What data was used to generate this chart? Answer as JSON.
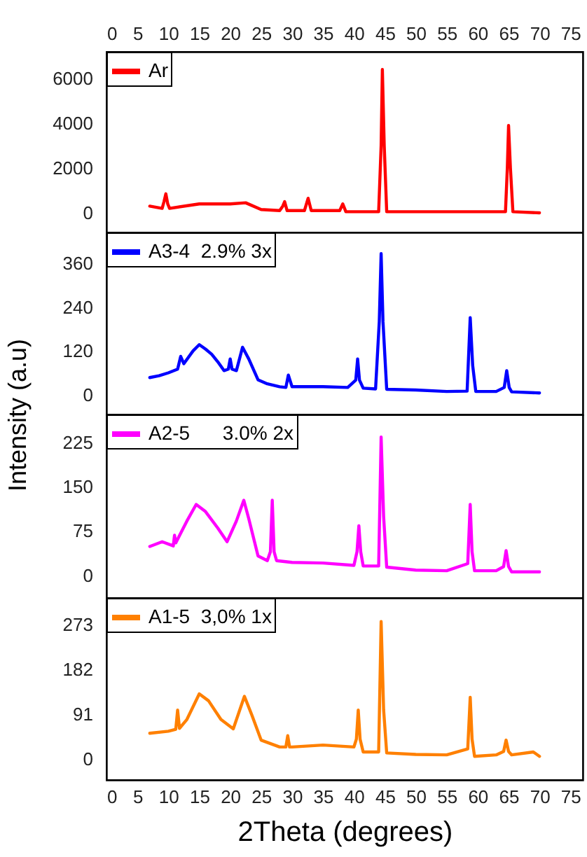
{
  "chart_data": [
    {
      "type": "line",
      "xlim": [
        0,
        77
      ],
      "xticks": [
        0,
        5,
        10,
        15,
        20,
        25,
        30,
        35,
        40,
        45,
        50,
        55,
        60,
        65,
        70,
        75
      ],
      "ylim": [
        -875,
        7190
      ],
      "yticks": [
        0,
        2000,
        4000,
        6000
      ],
      "legend": "top left",
      "grid": false,
      "line_style": "solid",
      "marker": "none",
      "series": [
        {
          "name": "Ar",
          "color": "#ff0000",
          "x": [
            7,
            9,
            9.3,
            9.6,
            9.9,
            10.2,
            15,
            20,
            22.5,
            25,
            28,
            28.5,
            28.8,
            29.2,
            32,
            32.6,
            33.1,
            37.7,
            38.2,
            38.7,
            44,
            44.4,
            44.6,
            44.9,
            45.3,
            55,
            64.5,
            64.8,
            65,
            65.3,
            65.7,
            70
          ],
          "values": [
            300,
            200,
            500,
            850,
            400,
            200,
            400,
            400,
            450,
            150,
            100,
            300,
            500,
            100,
            100,
            650,
            100,
            100,
            400,
            50,
            50,
            3000,
            6400,
            3000,
            50,
            50,
            50,
            2000,
            3900,
            2000,
            50,
            0
          ]
        }
      ]
    },
    {
      "type": "line",
      "xlim": [
        0,
        77
      ],
      "ylim": [
        -54,
        444
      ],
      "yticks": [
        0,
        120,
        240,
        360
      ],
      "tick_labels": "y",
      "legend": "top left",
      "grid": false,
      "line_style": "solid",
      "marker": "none",
      "ylabel": "Intensity (a.u)",
      "series": [
        {
          "name": "A3-4  2.9% 3x",
          "color": "#0000ff",
          "x": [
            7,
            8.5,
            10,
            11.5,
            12,
            12.5,
            14,
            15,
            16,
            17,
            18,
            19,
            19.7,
            20,
            20.3,
            21,
            22,
            23,
            24.5,
            26,
            28,
            29,
            29.4,
            30,
            35,
            39,
            40.3,
            40.6,
            40.9,
            41.5,
            43.5,
            44.1,
            44.4,
            44.7,
            45.3,
            50,
            55,
            58.3,
            58.8,
            59.2,
            59.7,
            63,
            64.3,
            64.7,
            65.1,
            65.5,
            70
          ],
          "values": [
            47,
            52,
            60,
            70,
            105,
            85,
            120,
            137,
            125,
            111,
            90,
            66,
            70,
            98,
            70,
            66,
            130,
            98,
            41,
            30,
            22,
            20,
            54,
            22,
            22,
            20,
            40,
            98,
            40,
            18,
            16,
            200,
            386,
            200,
            15,
            13,
            9,
            10,
            211,
            80,
            9,
            9,
            20,
            66,
            20,
            8,
            5
          ]
        }
      ]
    },
    {
      "type": "line",
      "xlim": [
        0,
        77
      ],
      "ylim": [
        -38,
        272
      ],
      "yticks": [
        0,
        75,
        150,
        225
      ],
      "tick_labels": "y",
      "legend": "top left",
      "grid": false,
      "line_style": "solid",
      "marker": "none",
      "series": [
        {
          "name": "A2-5      3.0% 2x",
          "color": "#ff00ff",
          "x": [
            7,
            9,
            10.8,
            11,
            11.2,
            13,
            14.5,
            16,
            18,
            19.5,
            21,
            22.2,
            23,
            24.5,
            26,
            26.5,
            26.8,
            27.1,
            27.5,
            30,
            35,
            40,
            40.5,
            40.8,
            41.1,
            41.5,
            44,
            44.4,
            44.8,
            45.3,
            50,
            55,
            58.4,
            58.8,
            59.1,
            59.5,
            63,
            64.2,
            64.6,
            65,
            65.5,
            70
          ],
          "values": [
            49,
            57,
            50,
            68,
            55,
            92,
            120,
            108,
            80,
            57,
            92,
            127,
            96,
            33,
            25,
            40,
            127,
            40,
            25,
            22,
            21,
            17,
            40,
            84,
            40,
            16,
            16,
            234,
            100,
            14,
            9,
            8,
            20,
            120,
            40,
            8,
            8,
            15,
            42,
            15,
            6,
            6
          ]
        }
      ]
    },
    {
      "type": "line",
      "xlim": [
        0,
        77
      ],
      "xticks": [
        0,
        5,
        10,
        15,
        20,
        25,
        30,
        35,
        40,
        45,
        50,
        55,
        60,
        65,
        70,
        75
      ],
      "ylim": [
        -43,
        327
      ],
      "yticks": [
        0,
        91,
        182,
        273
      ],
      "legend": "top left",
      "grid": false,
      "line_style": "solid",
      "marker": "none",
      "xlabel": "2Theta (degrees)",
      "series": [
        {
          "name": "A1-5  3,0% 1x",
          "color": "#ff8000",
          "x": [
            7,
            10,
            11.2,
            11.5,
            11.8,
            13,
            15,
            16.5,
            18.5,
            20.5,
            22.3,
            23.5,
            25,
            28,
            29,
            29.3,
            29.6,
            30,
            35,
            40,
            40.4,
            40.7,
            41,
            41.5,
            44,
            44.4,
            44.8,
            45.3,
            50,
            55,
            58.4,
            58.8,
            59.1,
            59.5,
            63,
            64.2,
            64.6,
            65,
            65.5,
            69,
            70
          ],
          "values": [
            52,
            56,
            60,
            99,
            62,
            80,
            132,
            118,
            80,
            61,
            127,
            89,
            38,
            24,
            24,
            47,
            24,
            24,
            28,
            24,
            40,
            99,
            40,
            14,
            14,
            279,
            100,
            12,
            9,
            8,
            20,
            125,
            40,
            5,
            8,
            15,
            38,
            15,
            8,
            14,
            5
          ]
        }
      ]
    }
  ]
}
